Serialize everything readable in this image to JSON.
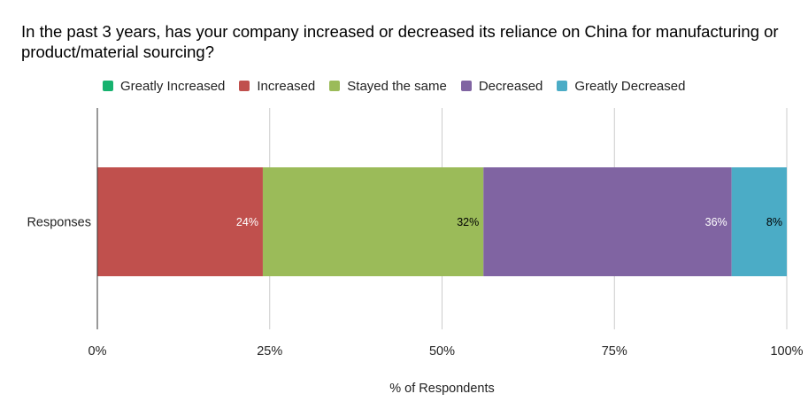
{
  "chart_data": {
    "type": "stacked-bar-100",
    "orientation": "horizontal",
    "title": "In the past 3 years, has your company increased or decreased its reliance on China for manufacturing or product/material sourcing?",
    "categories": [
      "Responses"
    ],
    "series": [
      {
        "name": "Greatly Increased",
        "color": "#17b26f",
        "values": [
          0
        ],
        "label": "",
        "label_color": "#ffffff"
      },
      {
        "name": "Increased",
        "color": "#c0504d",
        "values": [
          24
        ],
        "label": "24%",
        "label_color": "#ffffff"
      },
      {
        "name": "Stayed the same",
        "color": "#9bbb59",
        "values": [
          32
        ],
        "label": "32%",
        "label_color": "#000000"
      },
      {
        "name": "Decreased",
        "color": "#8064a2",
        "values": [
          36
        ],
        "label": "36%",
        "label_color": "#ffffff"
      },
      {
        "name": "Greatly Decreased",
        "color": "#4bacc6",
        "values": [
          8
        ],
        "label": "8%",
        "label_color": "#000000"
      }
    ],
    "xlim": [
      0,
      100
    ],
    "x_ticks": [
      0,
      25,
      50,
      75,
      100
    ],
    "x_tick_labels": [
      "0%",
      "25%",
      "50%",
      "75%",
      "100%"
    ],
    "xlabel": "% of Respondents",
    "ylabel": "",
    "legend_position": "top",
    "grid": true
  }
}
